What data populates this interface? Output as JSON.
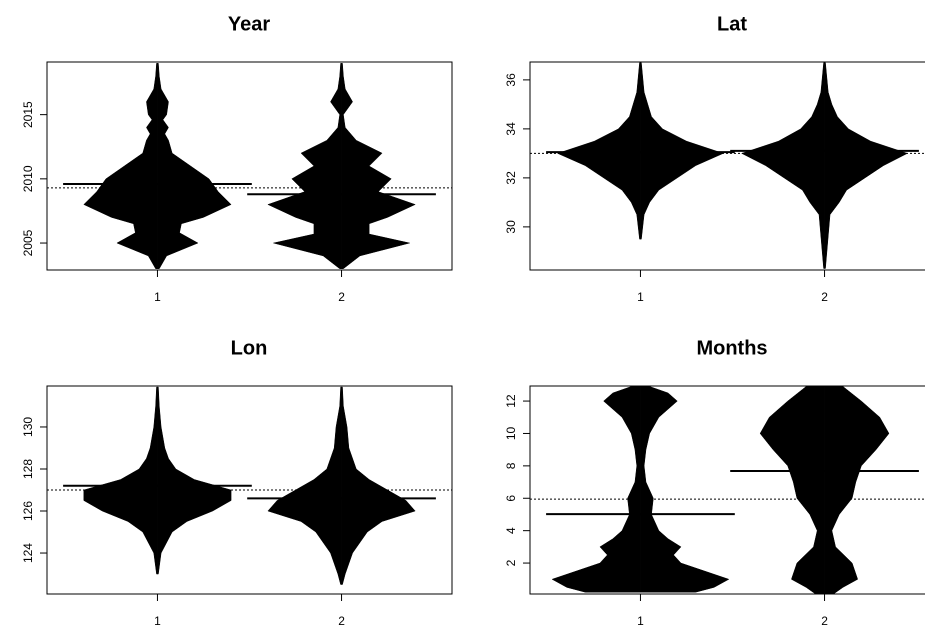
{
  "chart_data": [
    {
      "type": "beanplot",
      "title": "Year",
      "categories": [
        "1",
        "2"
      ],
      "xlim": [
        0.4,
        2.6
      ],
      "ylim": [
        2002.9,
        2019.1
      ],
      "yticks": [
        2005,
        2010,
        2015
      ],
      "overall_mean": 2009.3,
      "color": "#000000",
      "beans": [
        {
          "mean": 2009.6,
          "density": {
            "y": [
              2003,
              2004,
              2005,
              2005.8,
              2006.5,
              2007,
              2008,
              2009,
              2010,
              2011,
              2012,
              2013,
              2013.5,
              2014,
              2014.6,
              2015,
              2016,
              2017,
              2018,
              2019
            ],
            "width": [
              0.01,
              0.05,
              0.22,
              0.12,
              0.13,
              0.25,
              0.4,
              0.33,
              0.28,
              0.18,
              0.08,
              0.06,
              0.04,
              0.06,
              0.03,
              0.05,
              0.06,
              0.02,
              0.01,
              0.005
            ]
          }
        },
        {
          "mean": 2008.8,
          "density": {
            "y": [
              2003,
              2004,
              2005,
              2005.7,
              2006.5,
              2007,
              2008,
              2009,
              2010,
              2011,
              2012,
              2013,
              2014,
              2015,
              2016,
              2017,
              2018,
              2019
            ],
            "width": [
              0.01,
              0.1,
              0.37,
              0.15,
              0.15,
              0.25,
              0.4,
              0.2,
              0.27,
              0.15,
              0.22,
              0.08,
              0.02,
              0.01,
              0.06,
              0.02,
              0.01,
              0.005
            ]
          }
        }
      ]
    },
    {
      "type": "beanplot",
      "title": "Lat",
      "categories": [
        "1",
        "2"
      ],
      "xlim": [
        0.4,
        2.6
      ],
      "ylim": [
        28.24,
        36.73
      ],
      "yticks": [
        30,
        32,
        34,
        36
      ],
      "overall_mean": 33.0,
      "color": "#000000",
      "beans": [
        {
          "mean": 33.05,
          "density": {
            "y": [
              29.5,
              30.5,
              31,
              31.5,
              32,
              32.5,
              33,
              33.5,
              34,
              34.5,
              35,
              35.5,
              36.7
            ],
            "width": [
              0.005,
              0.02,
              0.05,
              0.1,
              0.2,
              0.3,
              0.45,
              0.25,
              0.12,
              0.06,
              0.04,
              0.02,
              0.005
            ]
          }
        },
        {
          "mean": 33.1,
          "density": {
            "y": [
              28.3,
              30.5,
              31,
              31.5,
              32,
              32.5,
              33,
              33.5,
              34,
              34.5,
              35,
              35.5,
              36.7
            ],
            "width": [
              0.005,
              0.03,
              0.08,
              0.12,
              0.22,
              0.32,
              0.45,
              0.25,
              0.13,
              0.07,
              0.04,
              0.02,
              0.005
            ]
          }
        }
      ]
    },
    {
      "type": "beanplot",
      "title": "Lon",
      "categories": [
        "1",
        "2"
      ],
      "xlim": [
        0.4,
        2.6
      ],
      "ylim": [
        122.05,
        131.95
      ],
      "yticks": [
        124,
        126,
        128,
        130
      ],
      "overall_mean": 127.0,
      "color": "#000000",
      "beans": [
        {
          "mean": 127.2,
          "density": {
            "y": [
              123,
              124,
              125,
              125.5,
              126,
              126.5,
              127,
              127.5,
              128,
              128.5,
              129,
              130,
              131,
              131.9
            ],
            "width": [
              0.005,
              0.02,
              0.08,
              0.16,
              0.3,
              0.4,
              0.4,
              0.2,
              0.1,
              0.06,
              0.04,
              0.02,
              0.01,
              0.005
            ]
          }
        },
        {
          "mean": 126.6,
          "density": {
            "y": [
              122.5,
              123,
              124,
              125,
              125.5,
              126,
              126.5,
              127,
              127.5,
              128,
              129,
              130,
              131,
              131.9
            ],
            "width": [
              0.005,
              0.02,
              0.06,
              0.14,
              0.22,
              0.4,
              0.35,
              0.25,
              0.15,
              0.08,
              0.04,
              0.03,
              0.01,
              0.005
            ]
          }
        }
      ]
    },
    {
      "type": "beanplot",
      "title": "Months",
      "categories": [
        "1",
        "2"
      ],
      "xlim": [
        0.4,
        2.6
      ],
      "ylim": [
        0.09,
        12.93
      ],
      "yticks": [
        2,
        4,
        6,
        8,
        10,
        12
      ],
      "overall_mean": 5.95,
      "color": "#000000",
      "beans": [
        {
          "mean": 5.02,
          "density": {
            "y": [
              0.2,
              0.5,
              1,
              1.5,
              2,
              2.5,
              3,
              3.5,
              4,
              5,
              6,
              7,
              8,
              9,
              10,
              11,
              12,
              12.5,
              12.9
            ],
            "width": [
              0.3,
              0.4,
              0.48,
              0.35,
              0.22,
              0.18,
              0.22,
              0.15,
              0.1,
              0.06,
              0.07,
              0.03,
              0.02,
              0.03,
              0.05,
              0.1,
              0.2,
              0.15,
              0.05
            ]
          }
        },
        {
          "mean": 7.68,
          "density": {
            "y": [
              0.1,
              0.5,
              1,
              2,
              3,
              4,
              5,
              6,
              7,
              8,
              9,
              10,
              11,
              12,
              12.9
            ],
            "width": [
              0.05,
              0.1,
              0.18,
              0.15,
              0.06,
              0.04,
              0.08,
              0.15,
              0.17,
              0.2,
              0.28,
              0.35,
              0.3,
              0.2,
              0.1
            ]
          }
        }
      ]
    }
  ]
}
